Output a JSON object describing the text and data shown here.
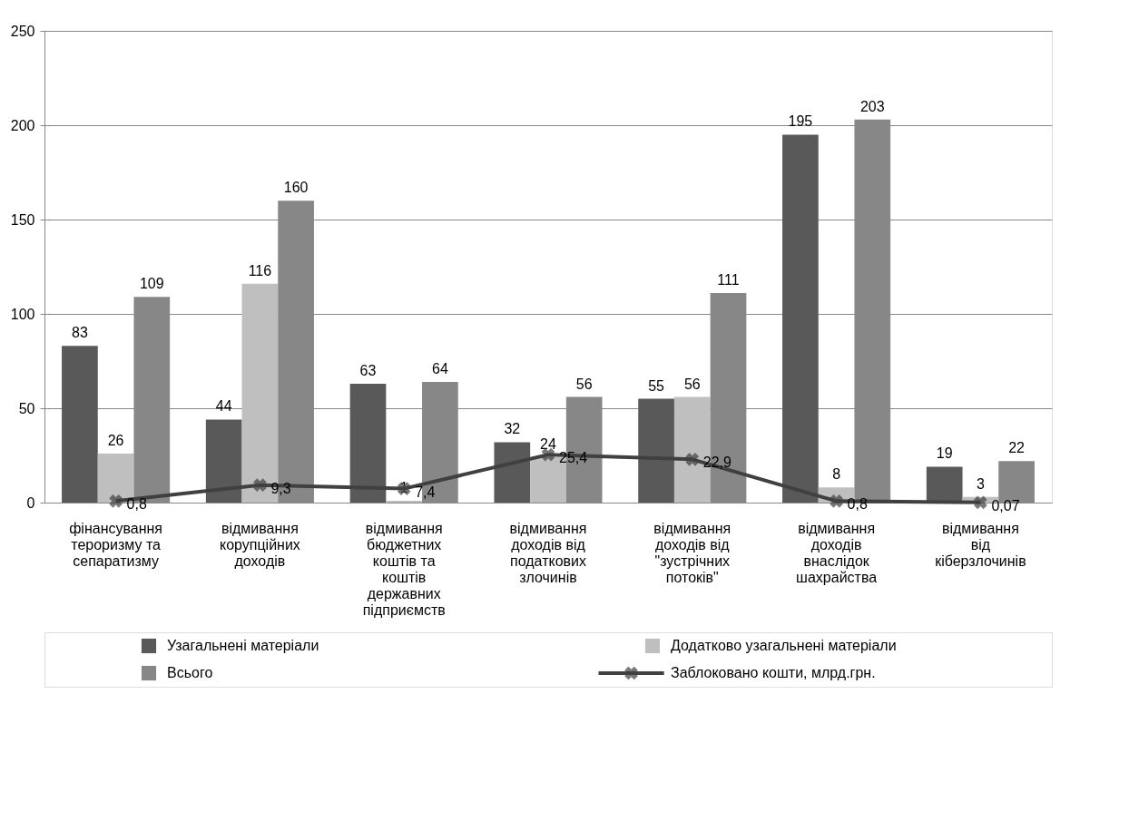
{
  "chart_data": {
    "type": "bar",
    "categories": [
      "фінансування тероризму та сепаратизму",
      "відмивання корупційних доходів",
      "відмивання бюджетних коштів та коштів державних підприємств",
      "відмивання доходів від податкових злочинів",
      "відмивання доходів від \"зустрічних потоків\"",
      "відмивання доходів внаслідок шахрайства",
      "відмивання від кіберзлочинів"
    ],
    "series": [
      {
        "name": "Узагальнені матеріали",
        "color": "#595959",
        "values": [
          83,
          44,
          63,
          32,
          55,
          195,
          19
        ]
      },
      {
        "name": "Додатково узагальнені матеріали",
        "color": "#bfbfbf",
        "values": [
          26,
          116,
          1,
          24,
          56,
          8,
          3
        ]
      },
      {
        "name": "Всього",
        "color": "#878787",
        "values": [
          109,
          160,
          64,
          56,
          111,
          203,
          22
        ]
      },
      {
        "name": "Заблоковано кошти, млрд.грн.",
        "type": "line",
        "color": "#404040",
        "marker": "cross",
        "values": [
          0.8,
          9.3,
          7.4,
          25.4,
          22.9,
          0.8,
          0.07
        ],
        "value_labels": [
          "0,8",
          "9,3",
          "7,4",
          "25,4",
          "22,9",
          "0,8",
          "0,07"
        ]
      }
    ],
    "ylim": [
      0,
      250
    ],
    "yticks": [
      0,
      50,
      100,
      150,
      200,
      250
    ],
    "grid": "y",
    "data_labels": true,
    "legend": "bottom"
  }
}
